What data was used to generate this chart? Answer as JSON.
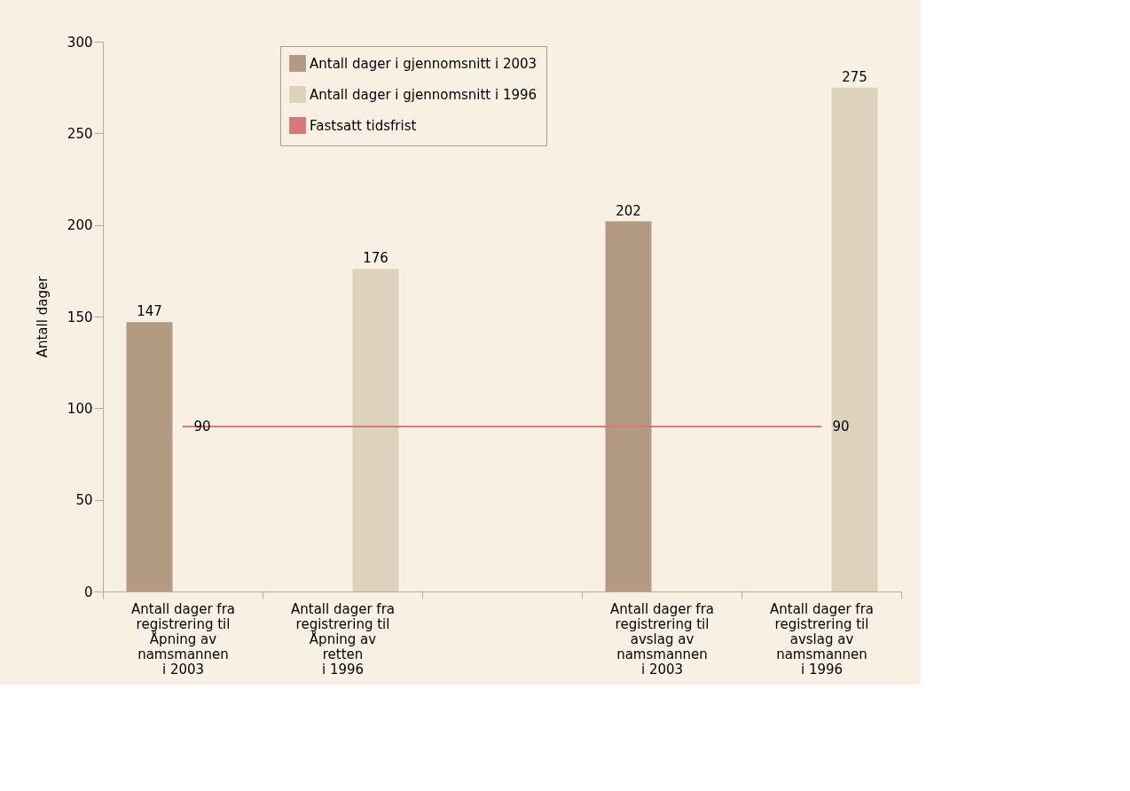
{
  "chart_data": {
    "type": "bar",
    "ylabel": "Antall dager",
    "categories": [
      "Antall dager fra\nregistrering til\nÅpning av\nnamsmannen\ni 2003",
      "Antall dager fra\nregistrering til\nÅpning av\nretten\ni 1996",
      null,
      "Antall dager fra\nregistrering til\navslag av\nnamsmannen\ni 2003",
      "Antall dager fra\nregistrering til\navslag av\nnamsmannen\ni 1996"
    ],
    "series": [
      {
        "name": "Antall dager i gjennomsnitt i 2003",
        "color": "#b39a82",
        "values": [
          147,
          null,
          null,
          202,
          null
        ]
      },
      {
        "name": "Antall dager i gjennomsnitt i 1996",
        "color": "#ddd3bc",
        "values": [
          null,
          176,
          null,
          null,
          275
        ]
      },
      {
        "name": "Fastsatt tidsfrist",
        "type": "line",
        "color": "#d9787a",
        "values": [
          90,
          90,
          90,
          90,
          90
        ],
        "value_labels": [
          "90",
          null,
          null,
          null,
          "90"
        ]
      }
    ],
    "data_labels": true,
    "ylim": [
      0,
      300
    ],
    "yticks": [
      0,
      50,
      100,
      150,
      200,
      250,
      300
    ],
    "grid": false,
    "legend": "top"
  }
}
